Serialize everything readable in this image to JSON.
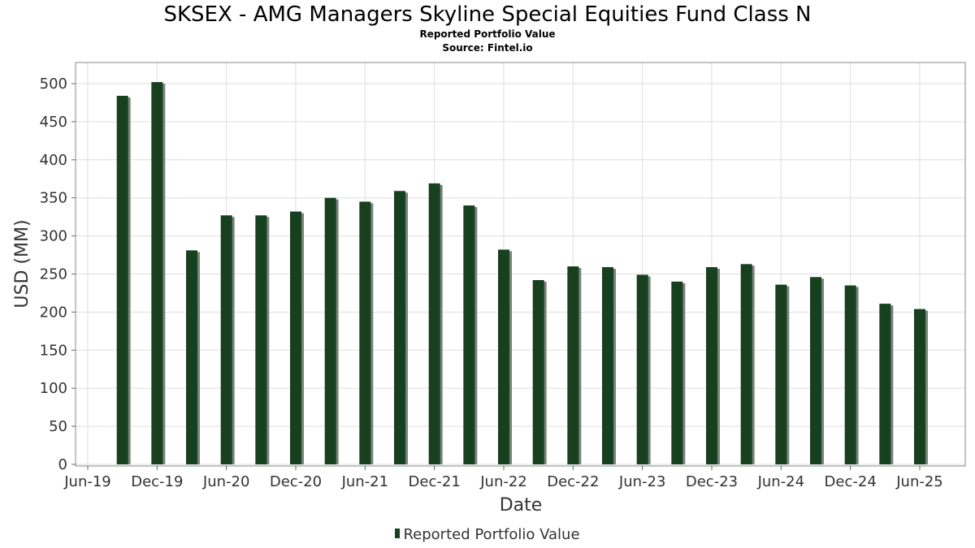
{
  "title": "SKSEX - AMG Managers Skyline Special Equities Fund Class N",
  "subtitle": "Reported Portfolio Value",
  "source": "Source: Fintel.io",
  "legend_label": "Reported Portfolio Value",
  "colors": {
    "bar": "#17401f",
    "bar_shadow": "#7f7f7f",
    "grid": "#dddddd",
    "frame": "#888888"
  },
  "chart_data": {
    "type": "bar",
    "title": "SKSEX - AMG Managers Skyline Special Equities Fund Class N",
    "subtitle": "Reported Portfolio Value",
    "xlabel": "Date",
    "ylabel": "USD (MM)",
    "ylim": [
      0,
      520
    ],
    "x_ticks": [
      "Jun-19",
      "Dec-19",
      "Jun-20",
      "Dec-20",
      "Jun-21",
      "Dec-21",
      "Jun-22",
      "Dec-22",
      "Jun-23",
      "Dec-23",
      "Jun-24",
      "Dec-24",
      "Jun-25"
    ],
    "y_ticks": [
      0,
      50,
      100,
      150,
      200,
      250,
      300,
      350,
      400,
      450,
      500
    ],
    "grid": true,
    "legend_position": "bottom",
    "x": [
      "2019-09",
      "2019-12",
      "2020-03",
      "2020-06",
      "2020-09",
      "2020-12",
      "2021-03",
      "2021-06",
      "2021-09",
      "2021-12",
      "2022-03",
      "2022-06",
      "2022-09",
      "2022-12",
      "2023-03",
      "2023-06",
      "2023-09",
      "2023-12",
      "2024-03",
      "2024-06",
      "2024-09",
      "2024-12",
      "2025-03",
      "2025-06"
    ],
    "series": [
      {
        "name": "Reported Portfolio Value",
        "values": [
          484,
          502,
          281,
          327,
          327,
          332,
          350,
          345,
          359,
          369,
          340,
          282,
          242,
          260,
          259,
          249,
          240,
          259,
          263,
          236,
          246,
          235,
          211,
          204
        ]
      }
    ]
  }
}
